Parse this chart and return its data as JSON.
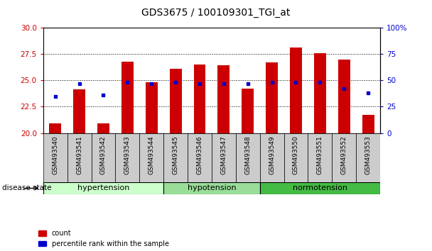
{
  "title": "GDS3675 / 100109301_TGI_at",
  "samples": [
    "GSM493540",
    "GSM493541",
    "GSM493542",
    "GSM493543",
    "GSM493544",
    "GSM493545",
    "GSM493546",
    "GSM493547",
    "GSM493548",
    "GSM493549",
    "GSM493550",
    "GSM493551",
    "GSM493552",
    "GSM493553"
  ],
  "count_values": [
    20.9,
    24.15,
    20.9,
    26.8,
    24.8,
    26.1,
    26.5,
    26.4,
    24.2,
    26.7,
    28.1,
    27.6,
    27.0,
    21.7
  ],
  "percentile_values": [
    35,
    47,
    36,
    48,
    47,
    48,
    47,
    47,
    47,
    48,
    48,
    48,
    42,
    38
  ],
  "groups": [
    {
      "label": "hypertension",
      "start": 0,
      "end": 4,
      "color": "#ccffcc"
    },
    {
      "label": "hypotension",
      "start": 5,
      "end": 8,
      "color": "#99dd99"
    },
    {
      "label": "normotension",
      "start": 9,
      "end": 13,
      "color": "#44bb44"
    }
  ],
  "ylim_left": [
    20,
    30
  ],
  "ylim_right": [
    0,
    100
  ],
  "yticks_left": [
    20,
    22.5,
    25,
    27.5,
    30
  ],
  "yticks_right": [
    0,
    25,
    50,
    75,
    100
  ],
  "bar_color": "#cc0000",
  "dot_color": "#0000cc",
  "bar_bottom": 20,
  "bg_color": "#ffffff",
  "axis_color_left": "#cc0000",
  "axis_color_right": "#0000cc",
  "xlabel_area_bg": "#cccccc",
  "bar_width": 0.5
}
